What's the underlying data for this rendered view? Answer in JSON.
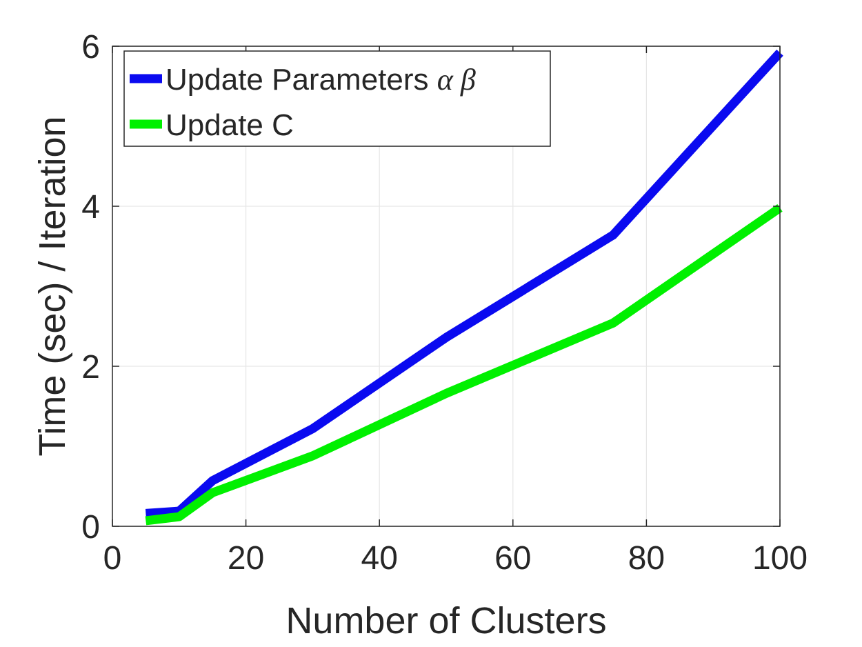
{
  "chart_data": {
    "type": "line",
    "xlabel": "Number of Clusters",
    "ylabel": "Time (sec) / Iteration",
    "xlim": [
      0,
      100
    ],
    "ylim": [
      0,
      6
    ],
    "xticks": [
      0,
      20,
      40,
      60,
      80,
      100
    ],
    "yticks": [
      0,
      2,
      4,
      6
    ],
    "xtick_labels": [
      "0",
      "20",
      "40",
      "60",
      "80",
      "100"
    ],
    "ytick_labels": [
      "0",
      "2",
      "4",
      "6"
    ],
    "grid": true,
    "legend_position": "top-left",
    "series": [
      {
        "name": "Update Parameters",
        "name_symbols": "α β",
        "color": "#0a0af0",
        "x": [
          5,
          10,
          15,
          30,
          50,
          75,
          100
        ],
        "y": [
          0.16,
          0.19,
          0.57,
          1.22,
          2.36,
          3.64,
          5.92
        ]
      },
      {
        "name": "Update C",
        "color": "#00f000",
        "x": [
          5,
          10,
          15,
          30,
          50,
          75,
          100
        ],
        "y": [
          0.07,
          0.12,
          0.42,
          0.88,
          1.66,
          2.54,
          3.98
        ]
      }
    ]
  }
}
